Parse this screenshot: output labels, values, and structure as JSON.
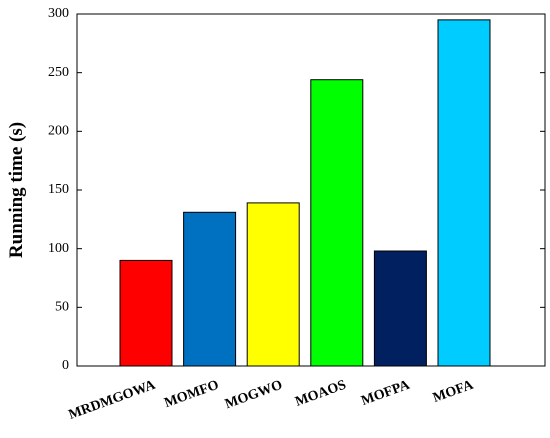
{
  "chart_data": {
    "type": "bar",
    "y_label": "Running time (s)",
    "categories": [
      "MRDMGOWA",
      "MOMFO",
      "MOGWO",
      "MOAOS",
      "MOFPA",
      "MOFA"
    ],
    "values": [
      90,
      131,
      139,
      244,
      98,
      295
    ],
    "colors": [
      "#ff0000",
      "#0070c0",
      "#ffff00",
      "#00ff00",
      "#002060",
      "#00ccff"
    ],
    "ylim": [
      0,
      300
    ],
    "yticks": [
      0,
      50,
      100,
      150,
      200,
      250,
      300
    ]
  }
}
